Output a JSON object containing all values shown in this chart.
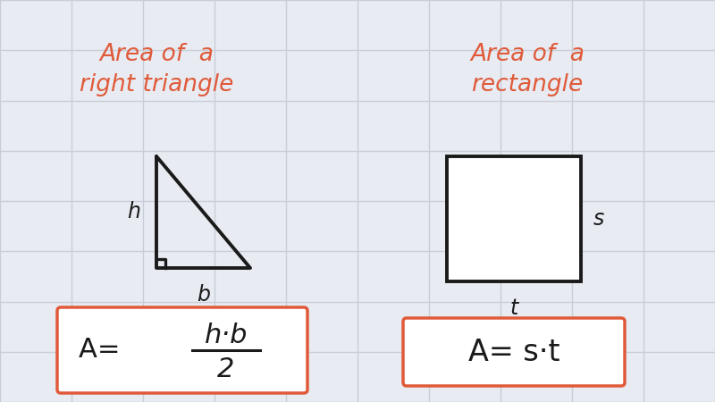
{
  "bg_color": "#e8ecf2",
  "grid_color": "#c8cdd8",
  "shape_color": "#1a1a1a",
  "text_color_red": "#e05a3a",
  "text_color_black": "#1a1a1a",
  "box_edge_color": "#e05a3a",
  "title_left_line1": "Area of  a",
  "title_left_line2": "right triangle",
  "title_right_line1": "Area of  a",
  "title_right_line2": "rectangle",
  "label_h": "h",
  "label_b": "b",
  "label_s": "s",
  "label_t": "t",
  "figsize": [
    8.0,
    4.5
  ],
  "dpi": 100
}
